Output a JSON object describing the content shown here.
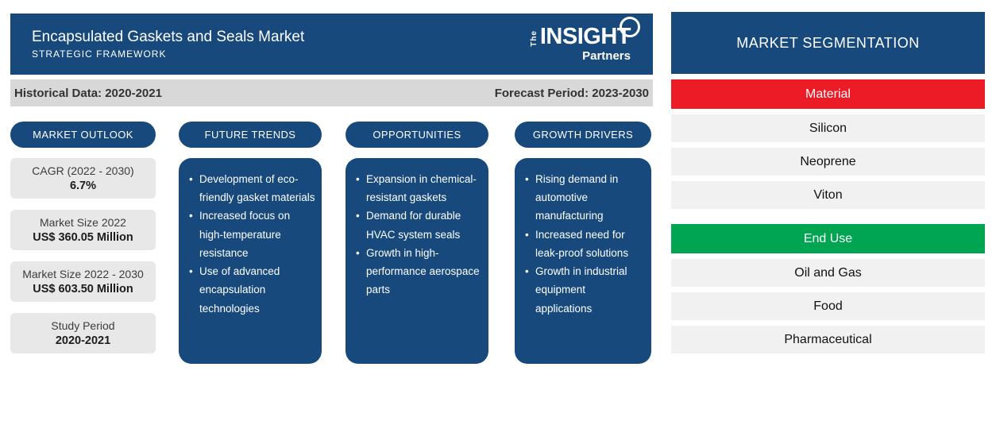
{
  "header": {
    "title": "Encapsulated Gaskets and Seals Market",
    "subtitle": "STRATEGIC FRAMEWORK",
    "logo": {
      "the": "The",
      "insight": "INSIGHT",
      "partners": "Partners"
    }
  },
  "period_bar": {
    "historical": "Historical Data: 2020-2021",
    "forecast": "Forecast Period: 2023-2030"
  },
  "columns": {
    "market_outlook": {
      "title": "MARKET OUTLOOK",
      "cards": [
        {
          "label": "CAGR (2022 - 2030)",
          "value": "6.7%"
        },
        {
          "label": "Market Size 2022",
          "value": "US$ 360.05 Million"
        },
        {
          "label": "Market Size 2022 - 2030",
          "value": "US$ 603.50 Million"
        },
        {
          "label": "Study Period",
          "value": "2020-2021"
        }
      ]
    },
    "future_trends": {
      "title": "FUTURE TRENDS",
      "bullets": [
        "Development of eco-friendly gasket materials",
        "Increased focus on high-temperature resistance",
        "Use of advanced encapsulation technologies"
      ]
    },
    "opportunities": {
      "title": "OPPORTUNITIES",
      "bullets": [
        "Expansion in chemical-resistant gaskets",
        "Demand for durable HVAC system seals",
        "Growth in high-performance aerospace parts"
      ]
    },
    "growth_drivers": {
      "title": "GROWTH DRIVERS",
      "bullets": [
        "Rising demand in automotive manufacturing",
        "Increased need for leak-proof solutions",
        "Growth in industrial equipment applications"
      ]
    }
  },
  "segmentation": {
    "title": "MARKET SEGMENTATION",
    "groups": [
      {
        "label": "Material",
        "color": "#EC1C27",
        "items": [
          "Silicon",
          "Neoprene",
          "Viton"
        ]
      },
      {
        "label": "End Use",
        "color": "#00A551",
        "items": [
          "Oil and Gas",
          "Food",
          "Pharmaceutical"
        ]
      }
    ]
  },
  "colors": {
    "navy": "#17497C",
    "red": "#EC1C27",
    "green": "#00A551",
    "band_gray": "#D8D8D8",
    "card_gray": "#E8E8E8",
    "row_gray": "#F1F1F1"
  }
}
